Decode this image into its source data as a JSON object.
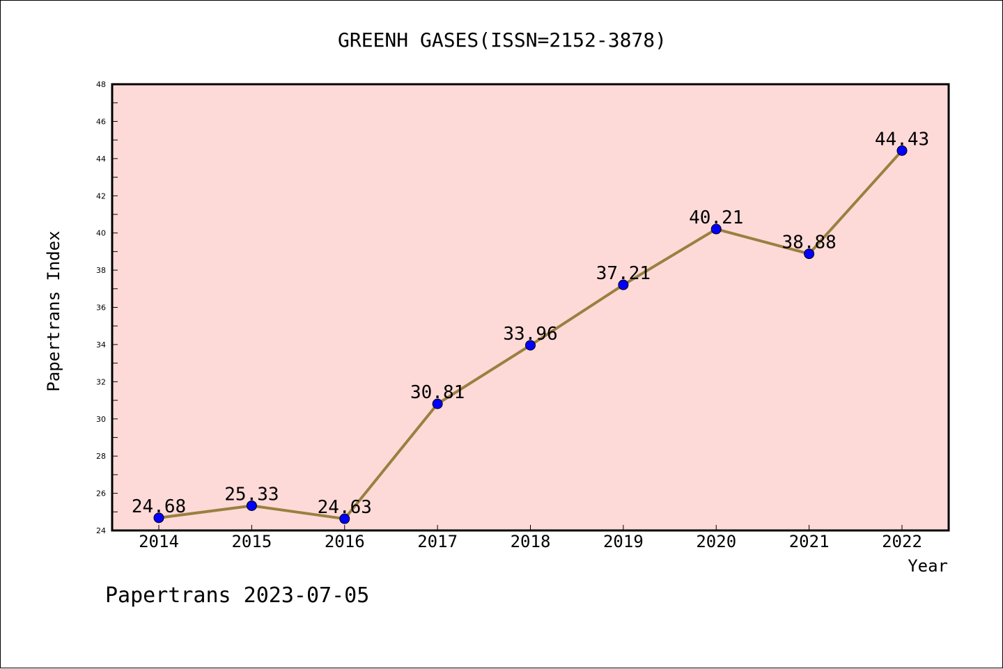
{
  "chart_data": {
    "type": "line",
    "title": "GREENH GASES(ISSN=2152-3878)",
    "xlabel": "Year",
    "ylabel": "Papertrans Index",
    "categories": [
      "2014",
      "2015",
      "2016",
      "2017",
      "2018",
      "2019",
      "2020",
      "2021",
      "2022"
    ],
    "values": [
      24.68,
      25.33,
      24.63,
      30.81,
      33.96,
      37.21,
      40.21,
      38.88,
      44.43
    ],
    "data_labels": [
      "24.68",
      "25.33",
      "24.63",
      "30.81",
      "33.96",
      "37.21",
      "40.21",
      "38.88",
      "44.43"
    ],
    "ylim": [
      24,
      48
    ],
    "yticks": [
      "24",
      "26",
      "28",
      "30",
      "32",
      "34",
      "36",
      "38",
      "40",
      "42",
      "44",
      "46",
      "48"
    ],
    "grid": false,
    "colors": {
      "plot_background": "#FDDAD8",
      "line": "#9A8040",
      "marker": "#0000FF"
    }
  },
  "footer": {
    "text": "Papertrans 2023-07-05"
  }
}
